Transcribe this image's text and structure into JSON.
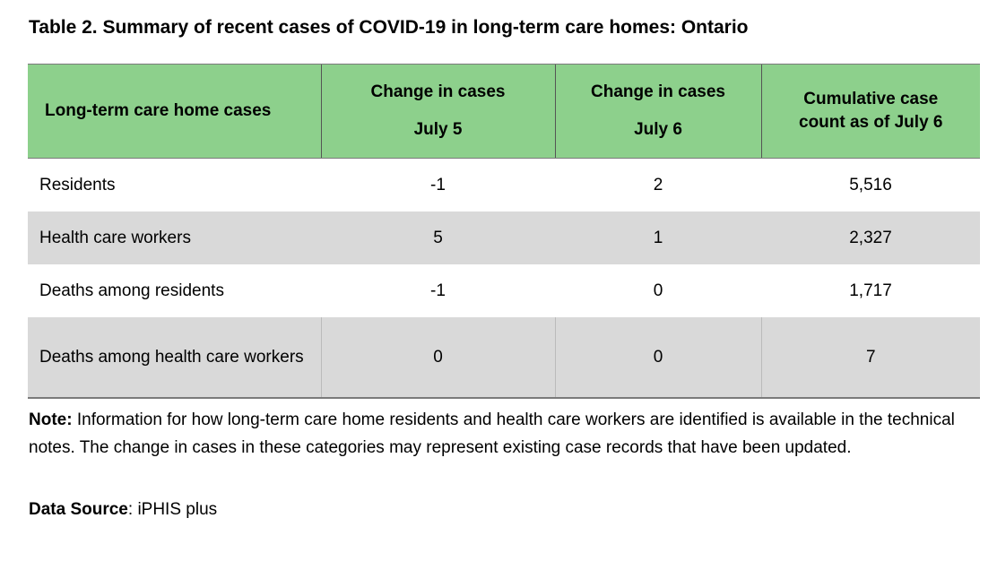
{
  "title": "Table 2. Summary of recent cases of COVID-19 in long-term care homes: Ontario",
  "table": {
    "headers": [
      {
        "line1": "Long-term care home cases",
        "line2": ""
      },
      {
        "line1": "Change in cases",
        "line2": "July 5"
      },
      {
        "line1": "Change in cases",
        "line2": "July 6"
      },
      {
        "line1": "Cumulative case",
        "line2": "count as of July 6"
      }
    ],
    "rows": [
      {
        "label": "Residents",
        "july5": "-1",
        "july6": "2",
        "cumulative": "5,516"
      },
      {
        "label": "Health care workers",
        "july5": "5",
        "july6": "1",
        "cumulative": "2,327"
      },
      {
        "label": "Deaths among residents",
        "july5": "-1",
        "july6": "0",
        "cumulative": "1,717"
      },
      {
        "label": "Deaths among health care workers",
        "july5": "0",
        "july6": "0",
        "cumulative": "7"
      }
    ],
    "header_color": "#8dd08c",
    "shade_color": "#d9d9d9"
  },
  "note": {
    "label": "Note:",
    "text": "Information for how long-term care home residents and health care workers are identified is available in the technical notes. The change in cases in these categories may represent existing case records that have been updated."
  },
  "source": {
    "label": "Data Source",
    "text": "iPHIS plus"
  }
}
